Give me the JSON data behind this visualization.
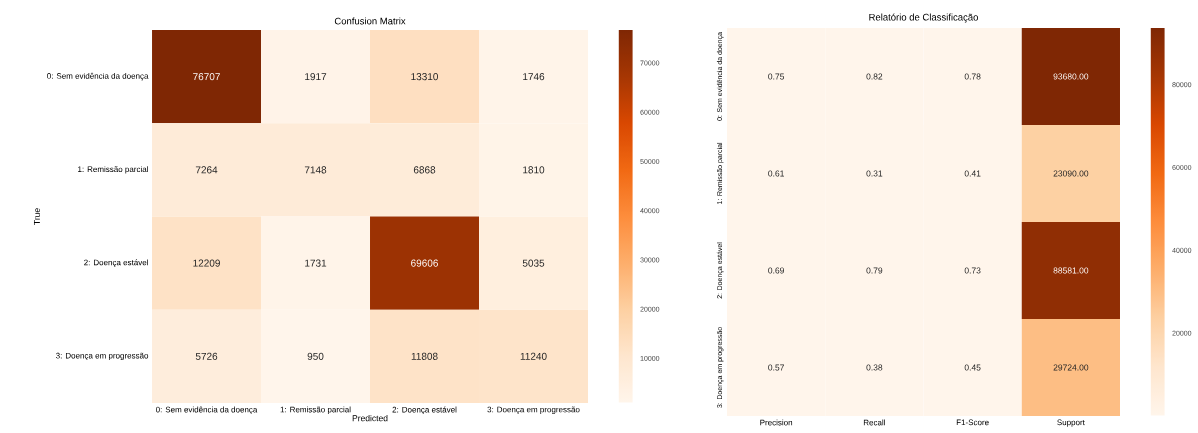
{
  "chart_data": [
    {
      "type": "heatmap",
      "title": "Confusion Matrix",
      "xlabel": "Predicted",
      "ylabel": "True",
      "categories": [
        "0: Sem evidência da doença",
        "1: Remissão parcial",
        "2: Doença estável",
        "3: Doença em progressão"
      ],
      "y_categories": [
        "0: Sem evidência da doença",
        "1: Remissão parcial",
        "2: Doença estável",
        "3: Doença em progressão"
      ],
      "cells": [
        [
          76707,
          1917,
          13310,
          1746
        ],
        [
          7264,
          7148,
          6868,
          1810
        ],
        [
          12209,
          1731,
          69606,
          5035
        ],
        [
          5726,
          950,
          11808,
          11240
        ]
      ],
      "data_labels": true,
      "clim": [
        950,
        76707
      ],
      "cticks": [
        10000,
        20000,
        30000,
        40000,
        50000,
        60000,
        70000
      ]
    },
    {
      "type": "heatmap",
      "title": "Relatório de Classificação",
      "categories": [
        "Precision",
        "Recall",
        "F1-Score",
        "Support"
      ],
      "y_categories": [
        "0: Sem evidência da doença",
        "1: Remissão parcial",
        "2: Doença estável",
        "3: Doença em progressão"
      ],
      "cells": [
        [
          0.75,
          0.82,
          0.78,
          93680
        ],
        [
          0.61,
          0.31,
          0.41,
          23090
        ],
        [
          0.69,
          0.79,
          0.73,
          88581
        ],
        [
          0.57,
          0.38,
          0.45,
          29724
        ]
      ],
      "cell_labels": [
        [
          "0.75",
          "0.82",
          "0.78",
          "93680.00"
        ],
        [
          "0.61",
          "0.31",
          "0.41",
          "23090.00"
        ],
        [
          "0.69",
          "0.79",
          "0.73",
          "88581.00"
        ],
        [
          "0.57",
          "0.38",
          "0.45",
          "29724.00"
        ]
      ],
      "clim": [
        0.31,
        93680
      ],
      "cticks": [
        20000,
        40000,
        60000,
        80000
      ]
    }
  ]
}
